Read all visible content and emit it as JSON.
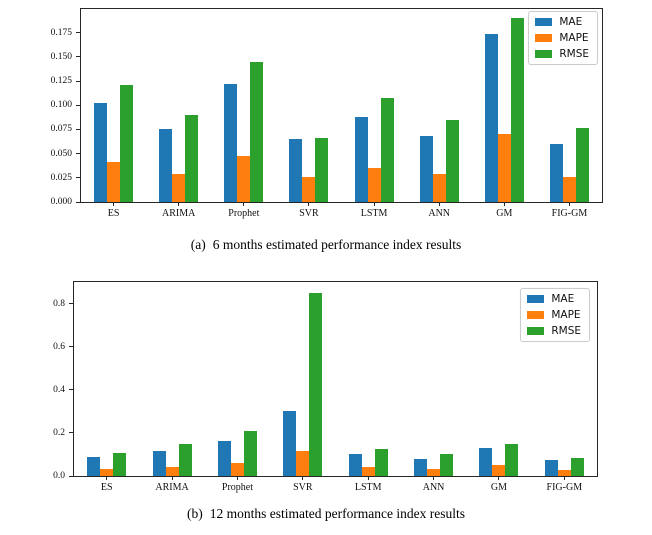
{
  "page": {
    "background": "#ffffff"
  },
  "colors": {
    "mae": "#1f77b4",
    "mape": "#ff7f0e",
    "rmse": "#2ca02c",
    "axis": "#262626",
    "legend_border": "#cccccc"
  },
  "chart_data": [
    {
      "type": "bar",
      "caption_label": "(a)",
      "caption_text": "6 months estimated performance index results",
      "categories": [
        "ES",
        "ARIMA",
        "Prophet",
        "SVR",
        "LSTM",
        "ANN",
        "GM",
        "FIG-GM"
      ],
      "series": [
        {
          "name": "MAE",
          "color_key": "mae",
          "values": [
            0.102,
            0.075,
            0.122,
            0.065,
            0.088,
            0.068,
            0.174,
            0.06
          ]
        },
        {
          "name": "MAPE",
          "color_key": "mape",
          "values": [
            0.041,
            0.029,
            0.048,
            0.026,
            0.035,
            0.029,
            0.07,
            0.026
          ]
        },
        {
          "name": "RMSE",
          "color_key": "rmse",
          "values": [
            0.121,
            0.09,
            0.145,
            0.066,
            0.107,
            0.085,
            0.19,
            0.076
          ]
        }
      ],
      "ylim": [
        0,
        0.1995
      ],
      "yticks": [
        {
          "v": 0.0,
          "label": "0.000"
        },
        {
          "v": 0.025,
          "label": "0.025"
        },
        {
          "v": 0.05,
          "label": "0.050"
        },
        {
          "v": 0.075,
          "label": "0.075"
        },
        {
          "v": 0.1,
          "label": "0.100"
        },
        {
          "v": 0.125,
          "label": "0.125"
        },
        {
          "v": 0.15,
          "label": "0.150"
        },
        {
          "v": 0.175,
          "label": "0.175"
        }
      ],
      "legend_position": "upper right",
      "grid": false
    },
    {
      "type": "bar",
      "caption_label": "(b)",
      "caption_text": "12 months estimated performance index results",
      "categories": [
        "ES",
        "ARIMA",
        "Prophet",
        "SVR",
        "LSTM",
        "ANN",
        "GM",
        "FIG-GM"
      ],
      "series": [
        {
          "name": "MAE",
          "color_key": "mae",
          "values": [
            0.09,
            0.117,
            0.163,
            0.3,
            0.101,
            0.08,
            0.13,
            0.076
          ]
        },
        {
          "name": "MAPE",
          "color_key": "mape",
          "values": [
            0.033,
            0.042,
            0.062,
            0.118,
            0.04,
            0.031,
            0.051,
            0.026
          ]
        },
        {
          "name": "RMSE",
          "color_key": "rmse",
          "values": [
            0.108,
            0.148,
            0.208,
            0.85,
            0.126,
            0.104,
            0.15,
            0.082
          ]
        }
      ],
      "ylim": [
        0,
        0.9
      ],
      "yticks": [
        {
          "v": 0.0,
          "label": "0.0"
        },
        {
          "v": 0.2,
          "label": "0.2"
        },
        {
          "v": 0.4,
          "label": "0.4"
        },
        {
          "v": 0.6,
          "label": "0.6"
        },
        {
          "v": 0.8,
          "label": "0.8"
        }
      ],
      "legend_position": "upper right",
      "grid": false
    }
  ]
}
